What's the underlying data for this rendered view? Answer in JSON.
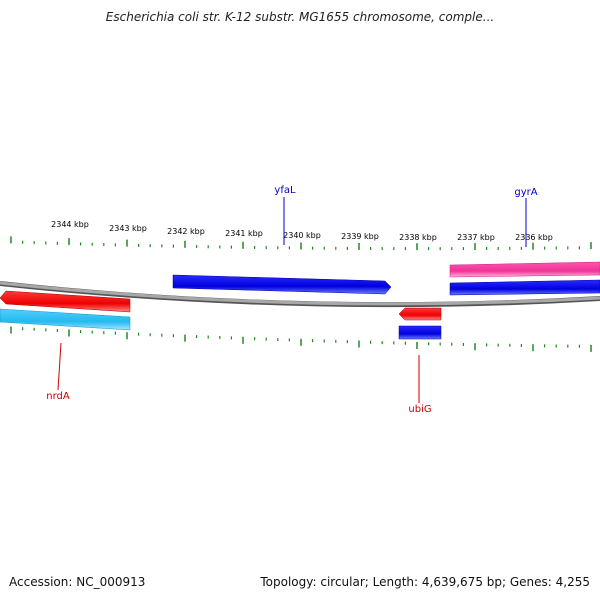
{
  "title": "Escherichia coli str. K-12 substr. MG1655 chromosome, comple...",
  "scale_labels": [
    "2344 kbp",
    "2343 kbp",
    "2342 kbp",
    "2341 kbp",
    "2340 kbp",
    "2339 kbp",
    "2338 kbp",
    "2337 kbp",
    "2336 kbp"
  ],
  "genes": [
    {
      "name": "yfaL",
      "strand": "forward",
      "label_color": "#0000cc"
    },
    {
      "name": "gyrA",
      "strand": "forward",
      "label_color": "#0000cc"
    },
    {
      "name": "nrdA",
      "strand": "reverse",
      "label_color": "#cc0000"
    },
    {
      "name": "ubiG",
      "strand": "reverse",
      "label_color": "#cc0000"
    }
  ],
  "colors": {
    "forward_cds": "#0000dd",
    "reverse_cds": "#ee0000",
    "rna_forward": "#ee3399",
    "rna_reverse": "#22bbee",
    "ticks": "#228822",
    "backbone": "#888888"
  },
  "footer": {
    "accession": "Accession: NC_000913",
    "summary": "Topology: circular; Length: 4,639,675 bp; Genes: 4,255"
  }
}
